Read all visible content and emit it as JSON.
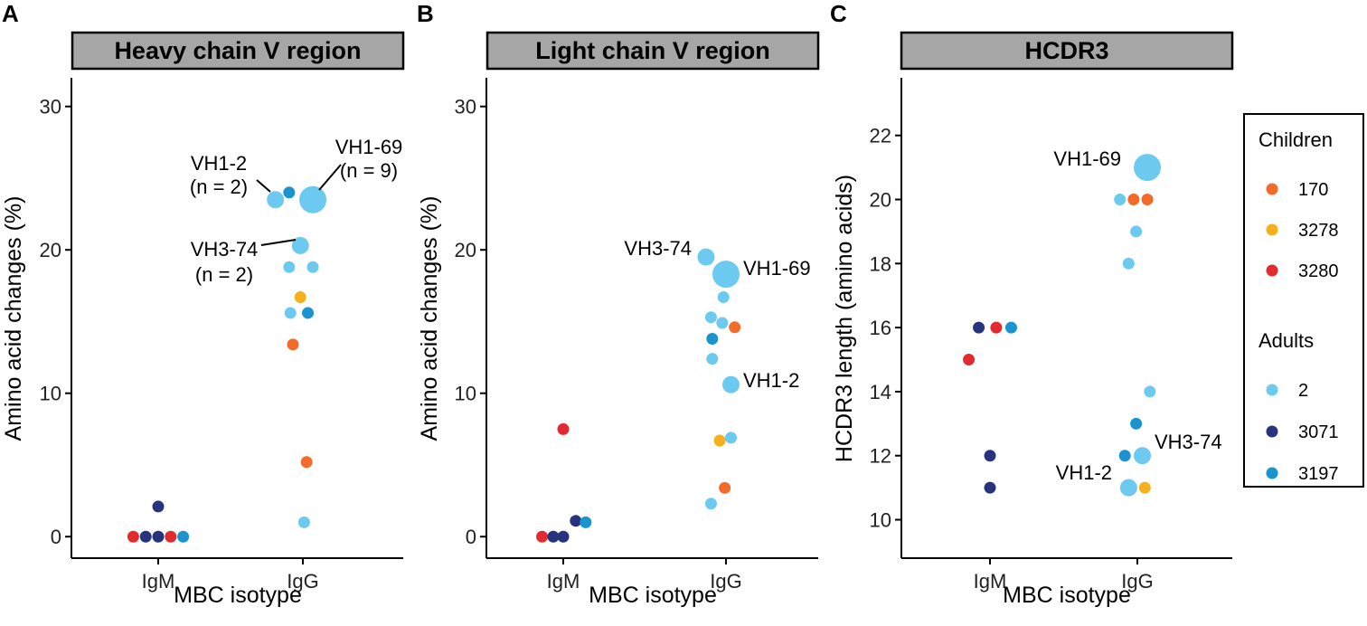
{
  "colors": {
    "170": "#f26b2a",
    "3278": "#f5b01e",
    "3280": "#e12b2f",
    "2": "#6ccaf0",
    "3071": "#27347d",
    "3197": "#1a93cf",
    "strip_fill": "#a6a6a6"
  },
  "legend": {
    "groups": [
      {
        "title": "Children",
        "entries": [
          {
            "label": "170",
            "key": "170"
          },
          {
            "label": "3278",
            "key": "3278"
          },
          {
            "label": "3280",
            "key": "3280"
          }
        ]
      },
      {
        "title": "Adults",
        "entries": [
          {
            "label": "2",
            "key": "2"
          },
          {
            "label": "3071",
            "key": "3071"
          },
          {
            "label": "3197",
            "key": "3197"
          }
        ]
      }
    ]
  },
  "chart_data": [
    {
      "type": "scatter",
      "panel": "A",
      "title": "Heavy chain V region",
      "xlabel": "MBC isotype",
      "ylabel": "Amino acid changes (%)",
      "categories": [
        "IgM",
        "IgG"
      ],
      "ylim": [
        -1.5,
        32
      ],
      "yticks": [
        0,
        10,
        20,
        30
      ],
      "points": [
        {
          "cat": "IgM",
          "jitter": -0.2,
          "y": 0,
          "key": "3280",
          "size": 1
        },
        {
          "cat": "IgM",
          "jitter": -0.1,
          "y": 0,
          "key": "3071",
          "size": 1
        },
        {
          "cat": "IgM",
          "jitter": 0.0,
          "y": 0,
          "key": "3071",
          "size": 1
        },
        {
          "cat": "IgM",
          "jitter": 0.1,
          "y": 0,
          "key": "3280",
          "size": 1
        },
        {
          "cat": "IgM",
          "jitter": 0.2,
          "y": 0,
          "key": "3197",
          "size": 1
        },
        {
          "cat": "IgM",
          "jitter": 0.0,
          "y": 2.1,
          "key": "3071",
          "size": 1
        },
        {
          "cat": "IgG",
          "jitter": 0.01,
          "y": 1.0,
          "key": "2",
          "size": 1
        },
        {
          "cat": "IgG",
          "jitter": 0.03,
          "y": 5.2,
          "key": "170",
          "size": 1
        },
        {
          "cat": "IgG",
          "jitter": -0.08,
          "y": 13.4,
          "key": "170",
          "size": 1
        },
        {
          "cat": "IgG",
          "jitter": -0.1,
          "y": 15.6,
          "key": "2",
          "size": 1
        },
        {
          "cat": "IgG",
          "jitter": 0.04,
          "y": 15.6,
          "key": "3197",
          "size": 1
        },
        {
          "cat": "IgG",
          "jitter": -0.02,
          "y": 16.7,
          "key": "3278",
          "size": 1
        },
        {
          "cat": "IgG",
          "jitter": -0.11,
          "y": 18.8,
          "key": "2",
          "size": 1
        },
        {
          "cat": "IgG",
          "jitter": 0.08,
          "y": 18.8,
          "key": "2",
          "size": 1
        },
        {
          "cat": "IgG",
          "jitter": -0.02,
          "y": 20.3,
          "key": "2",
          "size": 2
        },
        {
          "cat": "IgG",
          "jitter": -0.22,
          "y": 23.5,
          "key": "2",
          "size": 2
        },
        {
          "cat": "IgG",
          "jitter": -0.11,
          "y": 24.0,
          "key": "3197",
          "size": 1
        },
        {
          "cat": "IgG",
          "jitter": 0.08,
          "y": 23.5,
          "key": "2",
          "size": 9
        }
      ],
      "annotations": [
        {
          "lines": [
            "VH1-2",
            "(n = 2)"
          ],
          "cat": "IgG",
          "jitter": -0.22,
          "y": 23.5
        },
        {
          "lines": [
            "VH1-69",
            "(n = 9)"
          ],
          "cat": "IgG",
          "jitter": 0.08,
          "y": 23.5
        },
        {
          "lines": [
            "VH3-74",
            "(n = 2)"
          ],
          "cat": "IgG",
          "jitter": -0.02,
          "y": 20.3
        }
      ]
    },
    {
      "type": "scatter",
      "panel": "B",
      "title": "Light chain V region",
      "xlabel": "MBC isotype",
      "ylabel": "Amino acid changes (%)",
      "categories": [
        "IgM",
        "IgG"
      ],
      "ylim": [
        -1.5,
        32
      ],
      "yticks": [
        0,
        10,
        20,
        30
      ],
      "points": [
        {
          "cat": "IgM",
          "jitter": -0.17,
          "y": 0,
          "key": "3280",
          "size": 1
        },
        {
          "cat": "IgM",
          "jitter": -0.08,
          "y": 0,
          "key": "3071",
          "size": 1
        },
        {
          "cat": "IgM",
          "jitter": 0.0,
          "y": 0,
          "key": "3071",
          "size": 1
        },
        {
          "cat": "IgM",
          "jitter": 0.1,
          "y": 1.1,
          "key": "3071",
          "size": 1
        },
        {
          "cat": "IgM",
          "jitter": 0.18,
          "y": 1.0,
          "key": "3197",
          "size": 1
        },
        {
          "cat": "IgM",
          "jitter": 0.0,
          "y": 7.5,
          "key": "3280",
          "size": 1
        },
        {
          "cat": "IgG",
          "jitter": -0.12,
          "y": 2.3,
          "key": "2",
          "size": 1
        },
        {
          "cat": "IgG",
          "jitter": -0.01,
          "y": 3.4,
          "key": "170",
          "size": 1
        },
        {
          "cat": "IgG",
          "jitter": -0.05,
          "y": 6.7,
          "key": "3278",
          "size": 1
        },
        {
          "cat": "IgG",
          "jitter": 0.04,
          "y": 6.9,
          "key": "2",
          "size": 1
        },
        {
          "cat": "IgG",
          "jitter": 0.04,
          "y": 10.6,
          "key": "2",
          "size": 2
        },
        {
          "cat": "IgG",
          "jitter": -0.11,
          "y": 12.4,
          "key": "2",
          "size": 1
        },
        {
          "cat": "IgG",
          "jitter": -0.11,
          "y": 13.8,
          "key": "3197",
          "size": 1
        },
        {
          "cat": "IgG",
          "jitter": -0.12,
          "y": 15.3,
          "key": "2",
          "size": 1
        },
        {
          "cat": "IgG",
          "jitter": -0.03,
          "y": 14.9,
          "key": "2",
          "size": 1
        },
        {
          "cat": "IgG",
          "jitter": 0.07,
          "y": 14.6,
          "key": "170",
          "size": 1
        },
        {
          "cat": "IgG",
          "jitter": -0.02,
          "y": 16.7,
          "key": "2",
          "size": 1
        },
        {
          "cat": "IgG",
          "jitter": -0.16,
          "y": 19.5,
          "key": "2",
          "size": 2
        },
        {
          "cat": "IgG",
          "jitter": 0.0,
          "y": 18.3,
          "key": "2",
          "size": 9
        }
      ],
      "annotations": [
        {
          "lines": [
            "VH3-74"
          ],
          "cat": "IgG",
          "jitter": -0.16,
          "y": 19.5
        },
        {
          "lines": [
            "VH1-69"
          ],
          "cat": "IgG",
          "jitter": 0.0,
          "y": 18.3
        },
        {
          "lines": [
            "VH1-2"
          ],
          "cat": "IgG",
          "jitter": 0.04,
          "y": 10.6
        }
      ]
    },
    {
      "type": "scatter",
      "panel": "C",
      "title": "HCDR3",
      "xlabel": "MBC isotype",
      "ylabel": "HCDR3 length (amino acids)",
      "categories": [
        "IgM",
        "IgG"
      ],
      "ylim": [
        8.8,
        23.8
      ],
      "yticks": [
        10,
        12,
        14,
        16,
        18,
        20,
        22
      ],
      "points": [
        {
          "cat": "IgM",
          "jitter": -0.17,
          "y": 15,
          "key": "3280",
          "size": 1
        },
        {
          "cat": "IgM",
          "jitter": -0.09,
          "y": 16,
          "key": "3071",
          "size": 1
        },
        {
          "cat": "IgM",
          "jitter": 0.05,
          "y": 16,
          "key": "3280",
          "size": 1
        },
        {
          "cat": "IgM",
          "jitter": 0.17,
          "y": 16,
          "key": "3197",
          "size": 1
        },
        {
          "cat": "IgM",
          "jitter": 0.0,
          "y": 12,
          "key": "3071",
          "size": 1
        },
        {
          "cat": "IgM",
          "jitter": 0.0,
          "y": 11,
          "key": "3071",
          "size": 1
        },
        {
          "cat": "IgG",
          "jitter": -0.14,
          "y": 20,
          "key": "2",
          "size": 1
        },
        {
          "cat": "IgG",
          "jitter": -0.03,
          "y": 20,
          "key": "170",
          "size": 1
        },
        {
          "cat": "IgG",
          "jitter": 0.08,
          "y": 20,
          "key": "170",
          "size": 1
        },
        {
          "cat": "IgG",
          "jitter": 0.08,
          "y": 21,
          "key": "2",
          "size": 6
        },
        {
          "cat": "IgG",
          "jitter": -0.01,
          "y": 19,
          "key": "2",
          "size": 1
        },
        {
          "cat": "IgG",
          "jitter": -0.07,
          "y": 18,
          "key": "2",
          "size": 1
        },
        {
          "cat": "IgG",
          "jitter": 0.1,
          "y": 14,
          "key": "2",
          "size": 1
        },
        {
          "cat": "IgG",
          "jitter": -0.01,
          "y": 13,
          "key": "3197",
          "size": 1
        },
        {
          "cat": "IgG",
          "jitter": -0.1,
          "y": 12,
          "key": "3197",
          "size": 1
        },
        {
          "cat": "IgG",
          "jitter": 0.04,
          "y": 12,
          "key": "2",
          "size": 2
        },
        {
          "cat": "IgG",
          "jitter": -0.07,
          "y": 11,
          "key": "2",
          "size": 2
        },
        {
          "cat": "IgG",
          "jitter": 0.06,
          "y": 11,
          "key": "3278",
          "size": 1
        }
      ],
      "annotations": [
        {
          "lines": [
            "VH1-69"
          ],
          "cat": "IgG",
          "jitter": 0.08,
          "y": 21
        },
        {
          "lines": [
            "VH3-74"
          ],
          "cat": "IgG",
          "jitter": 0.04,
          "y": 12
        },
        {
          "lines": [
            "VH1-2"
          ],
          "cat": "IgG",
          "jitter": -0.07,
          "y": 11
        }
      ]
    }
  ]
}
